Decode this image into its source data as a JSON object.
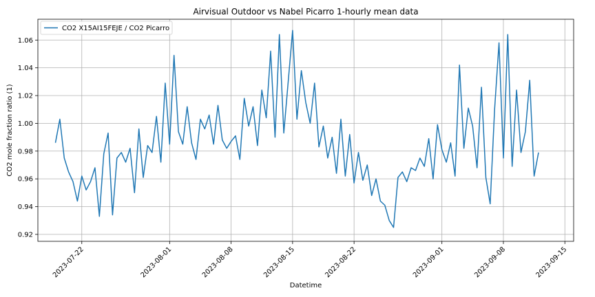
{
  "chart_data": {
    "type": "line",
    "title": "Airvisual Outdoor vs Nabel Picarro 1-hourly mean data",
    "xlabel": "Datetime",
    "ylabel": "CO2 mole fraction ratio (1)",
    "xlim": [
      "2023-07-17",
      "2023-09-16"
    ],
    "ylim": [
      0.915,
      1.075
    ],
    "grid": true,
    "legend_placement": "top-left",
    "x_ticks": [
      "2023-07-22",
      "2023-08-01",
      "2023-08-08",
      "2023-08-15",
      "2023-08-22",
      "2023-09-01",
      "2023-09-08",
      "2023-09-15"
    ],
    "y_ticks": [
      "0.92",
      "0.94",
      "0.96",
      "0.98",
      "1.00",
      "1.02",
      "1.04",
      "1.06"
    ],
    "series": [
      {
        "name": "CO2 X15AI15FEJE / CO2 Picarro",
        "color": "#1f77b4",
        "x": [
          "2023-07-19",
          "2023-07-19",
          "2023-07-20",
          "2023-07-20",
          "2023-07-21",
          "2023-07-21",
          "2023-07-22",
          "2023-07-22",
          "2023-07-23",
          "2023-07-23",
          "2023-07-24",
          "2023-07-24",
          "2023-07-25",
          "2023-07-25",
          "2023-07-26",
          "2023-07-26",
          "2023-07-27",
          "2023-07-27",
          "2023-07-28",
          "2023-07-28",
          "2023-07-29",
          "2023-07-29",
          "2023-07-30",
          "2023-07-30",
          "2023-07-31",
          "2023-07-31",
          "2023-08-01",
          "2023-08-01",
          "2023-08-02",
          "2023-08-02",
          "2023-08-03",
          "2023-08-03",
          "2023-08-04",
          "2023-08-04",
          "2023-08-05",
          "2023-08-05",
          "2023-08-06",
          "2023-08-06",
          "2023-08-07",
          "2023-08-07",
          "2023-08-08",
          "2023-08-08",
          "2023-08-09",
          "2023-08-09",
          "2023-08-10",
          "2023-08-10",
          "2023-08-11",
          "2023-08-11",
          "2023-08-12",
          "2023-08-12",
          "2023-08-13",
          "2023-08-13",
          "2023-08-14",
          "2023-08-14",
          "2023-08-15",
          "2023-08-15",
          "2023-08-16",
          "2023-08-16",
          "2023-08-17",
          "2023-08-17",
          "2023-08-18",
          "2023-08-18",
          "2023-08-19",
          "2023-08-19",
          "2023-08-20",
          "2023-08-20",
          "2023-08-21",
          "2023-08-21",
          "2023-08-22",
          "2023-08-22",
          "2023-08-23",
          "2023-08-23",
          "2023-08-24",
          "2023-08-24",
          "2023-08-25",
          "2023-08-25",
          "2023-08-26",
          "2023-08-26",
          "2023-08-27",
          "2023-08-27",
          "2023-08-28",
          "2023-08-28",
          "2023-08-29",
          "2023-08-29",
          "2023-08-30",
          "2023-08-30",
          "2023-08-31",
          "2023-08-31",
          "2023-09-01",
          "2023-09-01",
          "2023-09-02",
          "2023-09-02",
          "2023-09-03",
          "2023-09-03",
          "2023-09-04",
          "2023-09-04",
          "2023-09-05",
          "2023-09-05",
          "2023-09-06",
          "2023-09-06",
          "2023-09-07",
          "2023-09-07",
          "2023-09-08",
          "2023-09-08",
          "2023-09-09",
          "2023-09-09",
          "2023-09-10",
          "2023-09-10",
          "2023-09-11",
          "2023-09-11",
          "2023-09-12"
        ],
        "y": [
          0.986,
          1.003,
          0.975,
          0.965,
          0.958,
          0.944,
          0.962,
          0.952,
          0.958,
          0.968,
          0.933,
          0.978,
          0.993,
          0.934,
          0.975,
          0.979,
          0.972,
          0.982,
          0.95,
          0.996,
          0.961,
          0.984,
          0.979,
          1.005,
          0.972,
          1.029,
          0.985,
          1.049,
          0.994,
          0.985,
          1.012,
          0.986,
          0.974,
          1.003,
          0.996,
          1.006,
          0.985,
          1.013,
          0.988,
          0.982,
          0.987,
          0.991,
          0.974,
          1.018,
          0.998,
          1.012,
          0.984,
          1.024,
          1.004,
          1.052,
          0.99,
          1.064,
          0.993,
          1.03,
          1.067,
          1.003,
          1.038,
          1.015,
          1.0,
          1.029,
          0.983,
          0.998,
          0.975,
          0.99,
          0.964,
          1.003,
          0.962,
          0.992,
          0.957,
          0.979,
          0.959,
          0.97,
          0.948,
          0.96,
          0.944,
          0.941,
          0.93,
          0.925,
          0.961,
          0.965,
          0.958,
          0.968,
          0.966,
          0.975,
          0.969,
          0.989,
          0.96,
          0.999,
          0.981,
          0.972,
          0.986,
          0.962,
          1.042,
          0.982,
          1.011,
          0.998,
          0.968,
          1.026,
          0.961,
          0.942,
          1.01,
          1.058,
          0.975,
          1.064,
          0.969,
          1.024,
          0.979,
          0.994,
          1.031,
          0.962,
          0.979
        ]
      }
    ]
  }
}
